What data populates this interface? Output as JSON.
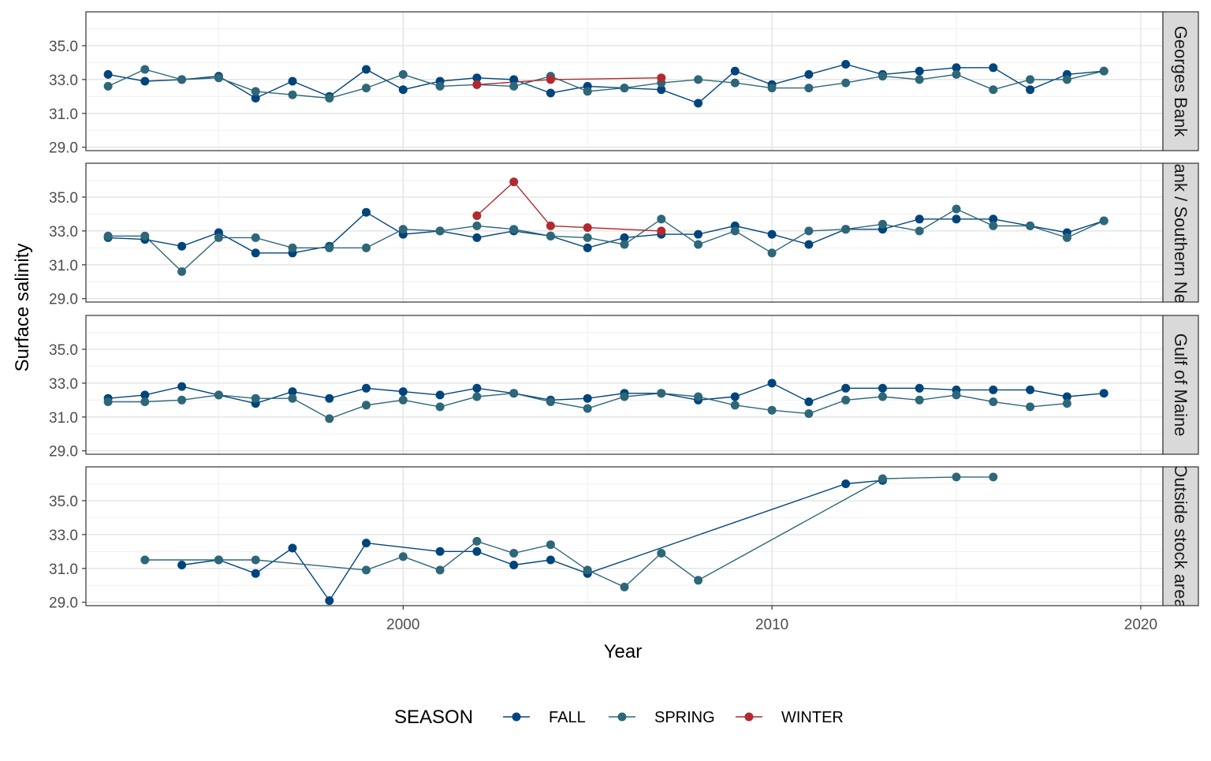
{
  "chart_data": {
    "type": "line",
    "title": "",
    "xlabel": "Year",
    "ylabel": "Surface salinity",
    "xlim": [
      1991.4,
      2020.6
    ],
    "ylim": [
      28.8,
      37.0
    ],
    "x_ticks": [
      2000,
      2010,
      2020
    ],
    "y_ticks": [
      29.0,
      31.0,
      33.0,
      35.0
    ],
    "grid": true,
    "legend": {
      "title": "SEASON",
      "position": "bottom",
      "entries": [
        {
          "name": "FALL",
          "color": "#00447C"
        },
        {
          "name": "SPRING",
          "color": "#2D6779"
        },
        {
          "name": "WINTER",
          "color": "#B22A2E"
        }
      ]
    },
    "panels": [
      {
        "label": "Georges Bank",
        "series": [
          {
            "name": "FALL",
            "color": "#00447C",
            "points": [
              [
                1992,
                33.3
              ],
              [
                1993,
                32.9
              ],
              [
                1994,
                33.0
              ],
              [
                1995,
                33.2
              ],
              [
                1996,
                31.9
              ],
              [
                1997,
                32.9
              ],
              [
                1998,
                32.0
              ],
              [
                1999,
                33.6
              ],
              [
                2000,
                32.4
              ],
              [
                2001,
                32.9
              ],
              [
                2002,
                33.1
              ],
              [
                2003,
                33.0
              ],
              [
                2004,
                32.2
              ],
              [
                2005,
                32.6
              ],
              [
                2006,
                32.5
              ],
              [
                2007,
                32.4
              ],
              [
                2008,
                31.6
              ],
              [
                2009,
                33.5
              ],
              [
                2010,
                32.7
              ],
              [
                2011,
                33.3
              ],
              [
                2012,
                33.9
              ],
              [
                2013,
                33.3
              ],
              [
                2014,
                33.5
              ],
              [
                2015,
                33.7
              ],
              [
                2016,
                33.7
              ],
              [
                2017,
                32.4
              ],
              [
                2018,
                33.3
              ],
              [
                2019,
                33.5
              ]
            ]
          },
          {
            "name": "SPRING",
            "color": "#2D6779",
            "points": [
              [
                1992,
                32.6
              ],
              [
                1993,
                33.6
              ],
              [
                1994,
                33.0
              ],
              [
                1995,
                33.1
              ],
              [
                1996,
                32.3
              ],
              [
                1997,
                32.1
              ],
              [
                1998,
                31.9
              ],
              [
                1999,
                32.5
              ],
              [
                2000,
                33.3
              ],
              [
                2001,
                32.6
              ],
              [
                2002,
                32.7
              ],
              [
                2003,
                32.6
              ],
              [
                2004,
                33.2
              ],
              [
                2005,
                32.3
              ],
              [
                2006,
                32.5
              ],
              [
                2007,
                32.8
              ],
              [
                2008,
                33.0
              ],
              [
                2009,
                32.8
              ],
              [
                2010,
                32.5
              ],
              [
                2011,
                32.5
              ],
              [
                2012,
                32.8
              ],
              [
                2013,
                33.2
              ],
              [
                2014,
                33.0
              ],
              [
                2015,
                33.3
              ],
              [
                2016,
                32.4
              ],
              [
                2017,
                33.0
              ],
              [
                2018,
                33.0
              ],
              [
                2019,
                33.5
              ]
            ]
          },
          {
            "name": "WINTER",
            "color": "#B22A2E",
            "points": [
              [
                2002,
                32.7
              ],
              [
                2004,
                33.0
              ],
              [
                2007,
                33.1
              ]
            ]
          }
        ]
      },
      {
        "label": "Georges Bank / Southern New England",
        "series": [
          {
            "name": "FALL",
            "color": "#00447C",
            "points": [
              [
                1992,
                32.6
              ],
              [
                1993,
                32.5
              ],
              [
                1994,
                32.1
              ],
              [
                1995,
                32.9
              ],
              [
                1996,
                31.7
              ],
              [
                1997,
                31.7
              ],
              [
                1998,
                32.1
              ],
              [
                1999,
                34.1
              ],
              [
                2000,
                32.8
              ],
              [
                2001,
                33.0
              ],
              [
                2002,
                32.6
              ],
              [
                2003,
                33.0
              ],
              [
                2004,
                32.7
              ],
              [
                2005,
                32.0
              ],
              [
                2006,
                32.6
              ],
              [
                2007,
                32.8
              ],
              [
                2008,
                32.8
              ],
              [
                2009,
                33.3
              ],
              [
                2010,
                32.8
              ],
              [
                2011,
                32.2
              ],
              [
                2012,
                33.1
              ],
              [
                2013,
                33.1
              ],
              [
                2014,
                33.7
              ],
              [
                2015,
                33.7
              ],
              [
                2016,
                33.7
              ],
              [
                2017,
                33.3
              ],
              [
                2018,
                32.9
              ],
              [
                2019,
                33.6
              ]
            ]
          },
          {
            "name": "SPRING",
            "color": "#2D6779",
            "points": [
              [
                1992,
                32.7
              ],
              [
                1993,
                32.7
              ],
              [
                1994,
                30.6
              ],
              [
                1995,
                32.6
              ],
              [
                1996,
                32.6
              ],
              [
                1997,
                32.0
              ],
              [
                1998,
                32.0
              ],
              [
                1999,
                32.0
              ],
              [
                2000,
                33.1
              ],
              [
                2001,
                33.0
              ],
              [
                2002,
                33.3
              ],
              [
                2003,
                33.1
              ],
              [
                2004,
                32.7
              ],
              [
                2005,
                32.6
              ],
              [
                2006,
                32.2
              ],
              [
                2007,
                33.7
              ],
              [
                2008,
                32.2
              ],
              [
                2009,
                33.0
              ],
              [
                2010,
                31.7
              ],
              [
                2011,
                33.0
              ],
              [
                2012,
                33.1
              ],
              [
                2013,
                33.4
              ],
              [
                2014,
                33.0
              ],
              [
                2015,
                34.3
              ],
              [
                2016,
                33.3
              ],
              [
                2017,
                33.3
              ],
              [
                2018,
                32.6
              ],
              [
                2019,
                33.6
              ]
            ]
          },
          {
            "name": "WINTER",
            "color": "#B22A2E",
            "points": [
              [
                2002,
                33.9
              ],
              [
                2003,
                35.9
              ],
              [
                2004,
                33.3
              ],
              [
                2005,
                33.2
              ],
              [
                2007,
                33.0
              ]
            ]
          }
        ]
      },
      {
        "label": "Gulf of Maine",
        "series": [
          {
            "name": "FALL",
            "color": "#00447C",
            "points": [
              [
                1992,
                32.1
              ],
              [
                1993,
                32.3
              ],
              [
                1994,
                32.8
              ],
              [
                1995,
                32.3
              ],
              [
                1996,
                31.8
              ],
              [
                1997,
                32.5
              ],
              [
                1998,
                32.1
              ],
              [
                1999,
                32.7
              ],
              [
                2000,
                32.5
              ],
              [
                2001,
                32.3
              ],
              [
                2002,
                32.7
              ],
              [
                2003,
                32.4
              ],
              [
                2004,
                32.0
              ],
              [
                2005,
                32.1
              ],
              [
                2006,
                32.4
              ],
              [
                2007,
                32.4
              ],
              [
                2008,
                32.0
              ],
              [
                2009,
                32.2
              ],
              [
                2010,
                33.0
              ],
              [
                2011,
                31.9
              ],
              [
                2012,
                32.7
              ],
              [
                2013,
                32.7
              ],
              [
                2014,
                32.7
              ],
              [
                2015,
                32.6
              ],
              [
                2016,
                32.6
              ],
              [
                2017,
                32.6
              ],
              [
                2018,
                32.2
              ],
              [
                2019,
                32.4
              ]
            ]
          },
          {
            "name": "SPRING",
            "color": "#2D6779",
            "points": [
              [
                1992,
                31.9
              ],
              [
                1993,
                31.9
              ],
              [
                1994,
                32.0
              ],
              [
                1995,
                32.3
              ],
              [
                1996,
                32.1
              ],
              [
                1997,
                32.1
              ],
              [
                1998,
                30.9
              ],
              [
                1999,
                31.7
              ],
              [
                2000,
                32.0
              ],
              [
                2001,
                31.6
              ],
              [
                2002,
                32.2
              ],
              [
                2003,
                32.4
              ],
              [
                2004,
                31.9
              ],
              [
                2005,
                31.5
              ],
              [
                2006,
                32.2
              ],
              [
                2007,
                32.4
              ],
              [
                2008,
                32.2
              ],
              [
                2009,
                31.7
              ],
              [
                2010,
                31.4
              ],
              [
                2011,
                31.2
              ],
              [
                2012,
                32.0
              ],
              [
                2013,
                32.2
              ],
              [
                2014,
                32.0
              ],
              [
                2015,
                32.3
              ],
              [
                2016,
                31.9
              ],
              [
                2017,
                31.6
              ],
              [
                2018,
                31.8
              ]
            ]
          }
        ]
      },
      {
        "label": "Outside stock area",
        "series": [
          {
            "name": "FALL",
            "color": "#00447C",
            "points": [
              [
                1994,
                31.2
              ],
              [
                1995,
                31.5
              ],
              [
                1996,
                30.7
              ],
              [
                1997,
                32.2
              ],
              [
                1998,
                29.1
              ],
              [
                1999,
                32.5
              ],
              [
                2001,
                32.0
              ],
              [
                2002,
                32.0
              ],
              [
                2003,
                31.2
              ],
              [
                2004,
                31.5
              ],
              [
                2005,
                30.7
              ],
              [
                2012,
                36.0
              ],
              [
                2013,
                36.2
              ]
            ]
          },
          {
            "name": "SPRING",
            "color": "#2D6779",
            "points": [
              [
                1993,
                31.5
              ],
              [
                1995,
                31.5
              ],
              [
                1996,
                31.5
              ],
              [
                1999,
                30.9
              ],
              [
                2000,
                31.7
              ],
              [
                2001,
                30.9
              ],
              [
                2002,
                32.6
              ],
              [
                2003,
                31.9
              ],
              [
                2004,
                32.4
              ],
              [
                2005,
                30.9
              ],
              [
                2006,
                29.9
              ],
              [
                2007,
                31.9
              ],
              [
                2008,
                30.3
              ],
              [
                2013,
                36.3
              ],
              [
                2015,
                36.4
              ],
              [
                2016,
                36.4
              ]
            ]
          }
        ]
      }
    ]
  }
}
